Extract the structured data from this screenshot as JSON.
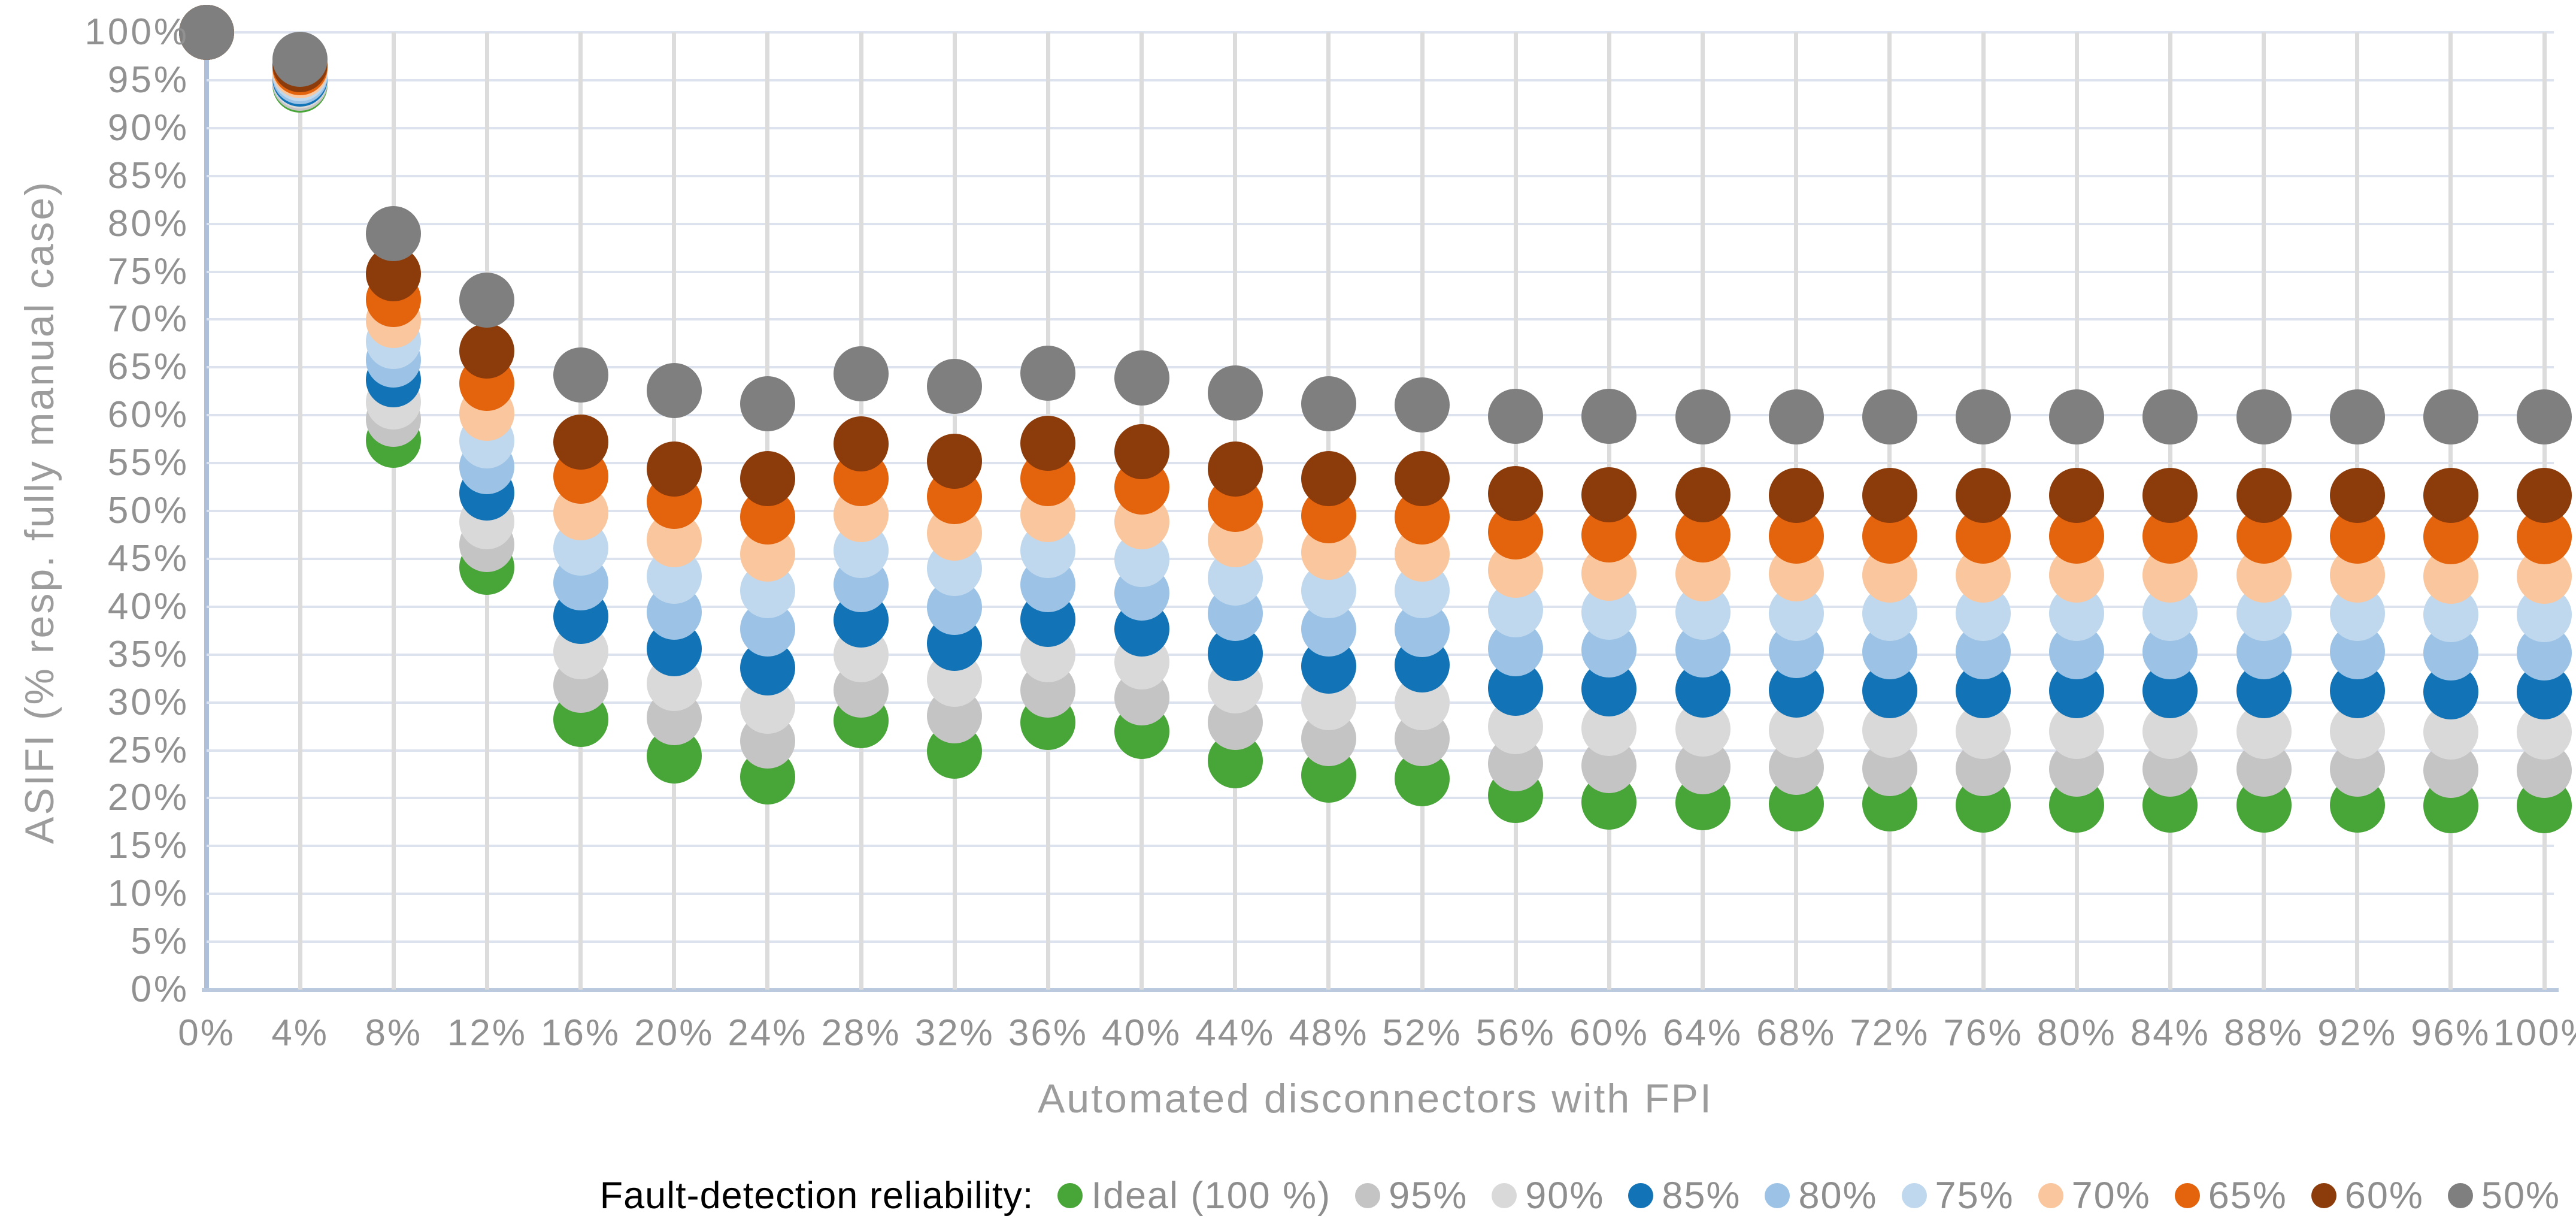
{
  "legend": {
    "title": "Fault-detection reliability:",
    "position": "bottom-right"
  },
  "chart_data": {
    "type": "scatter",
    "title": "",
    "xlabel": "Automated disconnectors with FPI",
    "ylabel": "ASIFI (% resp. fully manual case)",
    "xlim": [
      0,
      100
    ],
    "ylim": [
      0,
      100
    ],
    "grid": "both",
    "legend_position": "bottom-right",
    "x_values": [
      0,
      4,
      8,
      12,
      16,
      20,
      24,
      28,
      32,
      36,
      40,
      44,
      48,
      52,
      56,
      60,
      64,
      68,
      72,
      76,
      80,
      84,
      88,
      92,
      96,
      100
    ],
    "x_tick_labels": [
      "0%",
      "4%",
      "8%",
      "12%",
      "16%",
      "20%",
      "24%",
      "28%",
      "32%",
      "36%",
      "40%",
      "44%",
      "48%",
      "52%",
      "56%",
      "60%",
      "64%",
      "68%",
      "72%",
      "76%",
      "80%",
      "84%",
      "88%",
      "92%",
      "96%",
      "100%"
    ],
    "y_tick_values": [
      0,
      5,
      10,
      15,
      20,
      25,
      30,
      35,
      40,
      45,
      50,
      55,
      60,
      65,
      70,
      75,
      80,
      85,
      90,
      95,
      100
    ],
    "y_tick_labels": [
      "0%",
      "5%",
      "10%",
      "15%",
      "20%",
      "25%",
      "30%",
      "35%",
      "40%",
      "45%",
      "50%",
      "55%",
      "60%",
      "65%",
      "70%",
      "75%",
      "80%",
      "85%",
      "90%",
      "95%",
      "100%"
    ],
    "series": [
      {
        "name": "Ideal (100 %)",
        "color": "#48a537",
        "values": [
          100,
          94.5,
          57.4,
          44.1,
          28.2,
          24.4,
          22.2,
          28.1,
          24.9,
          27.9,
          27.0,
          23.9,
          22.4,
          22.0,
          20.3,
          19.6,
          19.5,
          19.4,
          19.4,
          19.3,
          19.3,
          19.3,
          19.3,
          19.3,
          19.2,
          19.2
        ]
      },
      {
        "name": "95%",
        "color": "#c4c4c4",
        "values": [
          100,
          94.7,
          59.6,
          46.5,
          31.8,
          28.4,
          26.0,
          31.3,
          28.6,
          31.3,
          30.5,
          27.9,
          26.2,
          26.2,
          23.6,
          23.4,
          23.3,
          23.2,
          23.1,
          23.1,
          23.0,
          23.0,
          23.0,
          23.0,
          22.9,
          22.9
        ]
      },
      {
        "name": "90%",
        "color": "#d9d9d9",
        "values": [
          100,
          94.9,
          61.4,
          48.9,
          35.3,
          32.0,
          29.6,
          35.0,
          32.4,
          35.0,
          34.2,
          31.7,
          30.0,
          30.0,
          27.5,
          27.3,
          27.2,
          27.1,
          27.1,
          27.0,
          27.0,
          27.0,
          27.0,
          27.0,
          26.9,
          26.9
        ]
      },
      {
        "name": "85%",
        "color": "#1273b6",
        "values": [
          100,
          95.1,
          63.7,
          51.9,
          39.0,
          35.6,
          33.6,
          38.6,
          36.2,
          38.7,
          37.7,
          35.1,
          33.8,
          33.9,
          31.5,
          31.4,
          31.3,
          31.3,
          31.2,
          31.2,
          31.2,
          31.2,
          31.2,
          31.2,
          31.1,
          31.1
        ]
      },
      {
        "name": "80%",
        "color": "#9cc3e5",
        "values": [
          100,
          95.4,
          65.8,
          54.6,
          42.5,
          39.4,
          37.7,
          42.3,
          39.9,
          42.3,
          41.4,
          39.3,
          37.7,
          37.6,
          35.6,
          35.5,
          35.5,
          35.4,
          35.3,
          35.3,
          35.3,
          35.3,
          35.3,
          35.3,
          35.2,
          35.2
        ]
      },
      {
        "name": "75%",
        "color": "#bfd8ee",
        "values": [
          100,
          95.7,
          67.7,
          57.3,
          46.1,
          43.2,
          41.7,
          45.9,
          44.0,
          45.9,
          44.9,
          43.0,
          41.7,
          41.7,
          39.7,
          39.4,
          39.4,
          39.3,
          39.3,
          39.3,
          39.3,
          39.3,
          39.3,
          39.3,
          39.2,
          39.2
        ]
      },
      {
        "name": "70%",
        "color": "#f9c69e",
        "values": [
          100,
          96.0,
          69.9,
          60.2,
          49.8,
          47.0,
          45.5,
          49.6,
          47.7,
          49.6,
          48.9,
          47.0,
          45.7,
          45.5,
          43.8,
          43.5,
          43.4,
          43.4,
          43.3,
          43.3,
          43.3,
          43.3,
          43.3,
          43.3,
          43.2,
          43.2
        ]
      },
      {
        "name": "65%",
        "color": "#e4630d",
        "values": [
          100,
          96.3,
          72.1,
          63.3,
          53.6,
          51.0,
          49.4,
          53.4,
          51.5,
          53.4,
          52.5,
          50.7,
          49.5,
          49.4,
          47.8,
          47.5,
          47.5,
          47.4,
          47.4,
          47.4,
          47.4,
          47.4,
          47.4,
          47.4,
          47.3,
          47.3
        ]
      },
      {
        "name": "60%",
        "color": "#8c3b0b",
        "values": [
          100,
          96.6,
          74.8,
          66.7,
          57.2,
          54.4,
          53.4,
          57.0,
          55.2,
          57.1,
          56.2,
          54.4,
          53.4,
          53.4,
          51.8,
          51.7,
          51.7,
          51.6,
          51.6,
          51.6,
          51.6,
          51.6,
          51.6,
          51.6,
          51.6,
          51.6
        ]
      },
      {
        "name": "50%",
        "color": "#7f7f7f",
        "values": [
          100,
          97.2,
          79.0,
          72.0,
          64.2,
          62.6,
          61.2,
          64.3,
          63.0,
          64.4,
          63.9,
          62.3,
          61.2,
          61.1,
          59.9,
          59.9,
          59.8,
          59.8,
          59.8,
          59.8,
          59.8,
          59.8,
          59.8,
          59.8,
          59.8,
          59.8
        ]
      }
    ]
  }
}
